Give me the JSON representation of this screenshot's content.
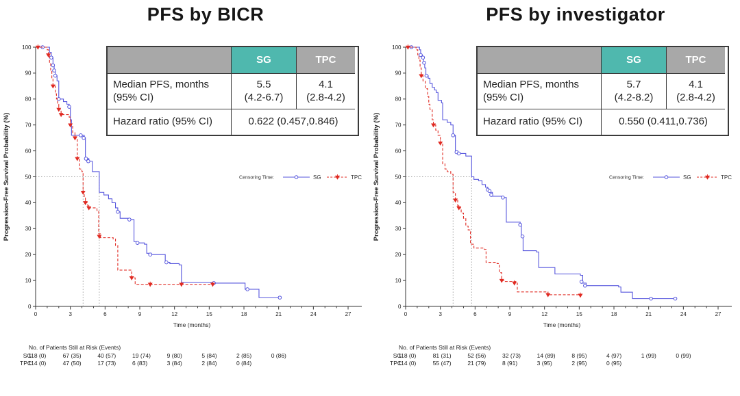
{
  "colors": {
    "sg": "#5555dd",
    "tpc": "#e02a22",
    "teal_header": "#4fb8ae",
    "gray_header": "#a8a8a8",
    "table_border": "#3a3a3a",
    "axis": "#333333",
    "ref_line": "#999999"
  },
  "panels": [
    {
      "title": "PFS by BICR",
      "stats_table": {
        "headers": [
          "",
          "SG",
          "TPC"
        ],
        "median_row": {
          "label": "Median PFS, months\n(95% CI)",
          "sg": "5.5\n(4.2-6.7)",
          "tpc": "4.1\n(2.8-4.2)"
        },
        "hazard_row": {
          "label": "Hazard ratio (95% CI)",
          "value": "0.622 (0.457,0.846)"
        }
      },
      "at_risk": {
        "title": "No. of Patients Still at Risk (Events)",
        "interval_months": 3,
        "rows": [
          {
            "label": "SG",
            "values": [
              "118 (0)",
              "67 (35)",
              "40 (57)",
              "19 (74)",
              "9 (80)",
              "5 (84)",
              "2 (85)",
              "0 (86)"
            ]
          },
          {
            "label": "TPC",
            "values": [
              "114 (0)",
              "47 (50)",
              "17 (73)",
              "6 (83)",
              "3 (84)",
              "2 (84)",
              "0 (84)"
            ]
          }
        ]
      }
    },
    {
      "title": "PFS by investigator",
      "stats_table": {
        "headers": [
          "",
          "SG",
          "TPC"
        ],
        "median_row": {
          "label": "Median PFS, months\n(95% CI)",
          "sg": "5.7\n(4.2-8.2)",
          "tpc": "4.1\n(2.8-4.2)"
        },
        "hazard_row": {
          "label": "Hazard ratio (95% CI)",
          "value": "0.550 (0.411,0.736)"
        }
      },
      "at_risk": {
        "title": "No. of Patients Still at Risk (Events)",
        "interval_months": 3,
        "rows": [
          {
            "label": "SG",
            "values": [
              "118 (0)",
              "81 (31)",
              "52 (56)",
              "32 (73)",
              "14 (89)",
              "8 (95)",
              "4 (97)",
              "1 (99)",
              "0 (99)"
            ]
          },
          {
            "label": "TPC",
            "values": [
              "114 (0)",
              "55 (47)",
              "21 (79)",
              "8 (91)",
              "3 (95)",
              "2 (95)",
              "0 (95)"
            ]
          }
        ]
      }
    }
  ],
  "chart_data": [
    {
      "type": "line",
      "subtype": "kaplan-meier-step",
      "title": "PFS by BICR",
      "xlabel": "Time (months)",
      "ylabel": "Progression-Free Survival Probability (%)",
      "xlim": [
        0,
        27
      ],
      "xticks": [
        0,
        3,
        6,
        9,
        12,
        15,
        18,
        21,
        24,
        27
      ],
      "minor_x_step": 1,
      "ylim": [
        0,
        100
      ],
      "yticks": [
        0,
        10,
        20,
        30,
        40,
        50,
        60,
        70,
        80,
        90,
        100
      ],
      "grid": false,
      "legend": {
        "prefix": "Censoring Time:",
        "entries": [
          "SG",
          "TPC"
        ],
        "position": "right-middle"
      },
      "reference_lines": {
        "y": 50,
        "x_medians": [
          4.1,
          5.5
        ]
      },
      "series": [
        {
          "name": "SG",
          "color_key": "sg",
          "line": "solid",
          "marker": "open-circle",
          "steps": [
            [
              0,
              100
            ],
            [
              1.2,
              98
            ],
            [
              1.35,
              96
            ],
            [
              1.5,
              93
            ],
            [
              1.6,
              91
            ],
            [
              1.7,
              89
            ],
            [
              1.85,
              87
            ],
            [
              2.0,
              80
            ],
            [
              2.4,
              79
            ],
            [
              2.7,
              78
            ],
            [
              2.9,
              77
            ],
            [
              3.0,
              72
            ],
            [
              3.1,
              66
            ],
            [
              4.2,
              65
            ],
            [
              4.3,
              57
            ],
            [
              4.6,
              56
            ],
            [
              4.9,
              52
            ],
            [
              5.5,
              44
            ],
            [
              5.9,
              43
            ],
            [
              6.3,
              41.5
            ],
            [
              6.6,
              40
            ],
            [
              6.9,
              38
            ],
            [
              7.1,
              36.5
            ],
            [
              7.3,
              34
            ],
            [
              8.1,
              33.5
            ],
            [
              8.5,
              25
            ],
            [
              8.8,
              24.5
            ],
            [
              9.4,
              24
            ],
            [
              9.6,
              20.5
            ],
            [
              10.0,
              20
            ],
            [
              11.2,
              17
            ],
            [
              11.6,
              16.5
            ],
            [
              12.4,
              16
            ],
            [
              12.6,
              9.2
            ],
            [
              15.5,
              9
            ],
            [
              18.1,
              6.6
            ],
            [
              19.3,
              3.4
            ],
            [
              21.1,
              3.4
            ]
          ],
          "censor_marks": [
            [
              0.6,
              100
            ],
            [
              1.35,
              96
            ],
            [
              1.5,
              93
            ],
            [
              1.6,
              91
            ],
            [
              1.7,
              89
            ],
            [
              2.0,
              80
            ],
            [
              2.9,
              77
            ],
            [
              3.9,
              66
            ],
            [
              4.15,
              65
            ],
            [
              4.35,
              57
            ],
            [
              4.55,
              56
            ],
            [
              7.1,
              36.5
            ],
            [
              8.1,
              33.5
            ],
            [
              8.8,
              24.5
            ],
            [
              9.9,
              20
            ],
            [
              11.3,
              17
            ],
            [
              15.4,
              9
            ],
            [
              18.3,
              6.6
            ],
            [
              21.1,
              3.4
            ]
          ]
        },
        {
          "name": "TPC",
          "color_key": "tpc",
          "line": "dashed",
          "marker": "filled-triangle",
          "steps": [
            [
              0,
              100
            ],
            [
              1.0,
              99
            ],
            [
              1.1,
              97
            ],
            [
              1.2,
              94
            ],
            [
              1.3,
              91
            ],
            [
              1.4,
              88
            ],
            [
              1.5,
              85
            ],
            [
              1.7,
              82
            ],
            [
              1.8,
              80
            ],
            [
              1.9,
              78
            ],
            [
              2.0,
              76
            ],
            [
              2.2,
              74
            ],
            [
              2.9,
              73
            ],
            [
              3.0,
              70
            ],
            [
              3.2,
              67
            ],
            [
              3.4,
              65
            ],
            [
              3.6,
              57
            ],
            [
              3.8,
              53
            ],
            [
              4.0,
              52
            ],
            [
              4.1,
              44
            ],
            [
              4.2,
              42
            ],
            [
              4.3,
              40
            ],
            [
              4.5,
              38
            ],
            [
              5.3,
              37
            ],
            [
              5.45,
              28
            ],
            [
              5.6,
              26.5
            ],
            [
              6.7,
              26
            ],
            [
              6.9,
              23.5
            ],
            [
              7.1,
              14
            ],
            [
              8.3,
              11
            ],
            [
              8.6,
              8.5
            ],
            [
              15.4,
              8.5
            ]
          ],
          "censor_marks": [
            [
              0.2,
              100
            ],
            [
              1.1,
              97
            ],
            [
              1.5,
              85
            ],
            [
              2.0,
              76
            ],
            [
              2.2,
              74
            ],
            [
              3.0,
              70
            ],
            [
              3.4,
              65
            ],
            [
              3.6,
              57
            ],
            [
              4.1,
              44
            ],
            [
              4.3,
              40
            ],
            [
              4.6,
              38
            ],
            [
              5.5,
              27
            ],
            [
              8.3,
              11
            ],
            [
              9.9,
              8.5
            ],
            [
              12.6,
              8.5
            ],
            [
              15.3,
              8.5
            ]
          ]
        }
      ]
    },
    {
      "type": "line",
      "subtype": "kaplan-meier-step",
      "title": "PFS by investigator",
      "xlabel": "Time (months)",
      "ylabel": "Progression-Free Survival Probability (%)",
      "xlim": [
        0,
        27
      ],
      "xticks": [
        0,
        3,
        6,
        9,
        12,
        15,
        18,
        21,
        24,
        27
      ],
      "minor_x_step": 1,
      "ylim": [
        0,
        100
      ],
      "yticks": [
        0,
        10,
        20,
        30,
        40,
        50,
        60,
        70,
        80,
        90,
        100
      ],
      "grid": false,
      "legend": {
        "prefix": "Censoring Time:",
        "entries": [
          "SG",
          "TPC"
        ],
        "position": "right-middle"
      },
      "reference_lines": {
        "y": 50,
        "x_medians": [
          4.1,
          5.7
        ]
      },
      "series": [
        {
          "name": "SG",
          "color_key": "sg",
          "line": "solid",
          "marker": "open-circle",
          "steps": [
            [
              0,
              100
            ],
            [
              1.2,
              99
            ],
            [
              1.3,
              97
            ],
            [
              1.45,
              96
            ],
            [
              1.55,
              94
            ],
            [
              1.65,
              92
            ],
            [
              1.75,
              89
            ],
            [
              1.95,
              88
            ],
            [
              2.1,
              86
            ],
            [
              2.3,
              84.5
            ],
            [
              2.5,
              83.5
            ],
            [
              2.65,
              82.5
            ],
            [
              2.8,
              79.5
            ],
            [
              3.1,
              78.5
            ],
            [
              3.2,
              72
            ],
            [
              3.6,
              71
            ],
            [
              3.9,
              70
            ],
            [
              4.1,
              66
            ],
            [
              4.3,
              60
            ],
            [
              4.5,
              59
            ],
            [
              5.2,
              58
            ],
            [
              5.7,
              50
            ],
            [
              5.9,
              49
            ],
            [
              6.3,
              48.5
            ],
            [
              6.6,
              47
            ],
            [
              6.9,
              46
            ],
            [
              7.1,
              45
            ],
            [
              7.3,
              44
            ],
            [
              7.5,
              42.5
            ],
            [
              8.4,
              42
            ],
            [
              8.7,
              32.5
            ],
            [
              9.9,
              31.5
            ],
            [
              10.0,
              27
            ],
            [
              10.15,
              21.5
            ],
            [
              11.3,
              21
            ],
            [
              11.5,
              15
            ],
            [
              12.9,
              12.5
            ],
            [
              15.1,
              12
            ],
            [
              15.3,
              9
            ],
            [
              15.6,
              8
            ],
            [
              18.4,
              7.5
            ],
            [
              18.6,
              5.5
            ],
            [
              19.6,
              3
            ],
            [
              23.4,
              3
            ]
          ],
          "censor_marks": [
            [
              0.5,
              100
            ],
            [
              1.3,
              97
            ],
            [
              1.5,
              96
            ],
            [
              1.6,
              94
            ],
            [
              1.8,
              89
            ],
            [
              4.1,
              66
            ],
            [
              4.4,
              59.5
            ],
            [
              4.6,
              59
            ],
            [
              7.1,
              45
            ],
            [
              7.25,
              44.5
            ],
            [
              7.4,
              43
            ],
            [
              8.4,
              42
            ],
            [
              9.9,
              31.5
            ],
            [
              10.1,
              27
            ],
            [
              15.2,
              9.5
            ],
            [
              15.5,
              8
            ],
            [
              21.2,
              3
            ],
            [
              23.3,
              3
            ]
          ]
        },
        {
          "name": "TPC",
          "color_key": "tpc",
          "line": "dashed",
          "marker": "filled-triangle",
          "steps": [
            [
              0,
              100
            ],
            [
              0.9,
              99
            ],
            [
              1.05,
              97
            ],
            [
              1.15,
              95
            ],
            [
              1.25,
              92
            ],
            [
              1.35,
              89
            ],
            [
              1.5,
              87
            ],
            [
              1.7,
              84
            ],
            [
              1.9,
              81
            ],
            [
              2.0,
              78
            ],
            [
              2.1,
              76
            ],
            [
              2.3,
              72
            ],
            [
              2.4,
              70
            ],
            [
              2.6,
              68
            ],
            [
              2.8,
              66
            ],
            [
              3.0,
              63
            ],
            [
              3.2,
              55
            ],
            [
              3.4,
              53
            ],
            [
              3.6,
              52
            ],
            [
              3.9,
              51
            ],
            [
              4.1,
              44
            ],
            [
              4.3,
              41
            ],
            [
              4.5,
              38
            ],
            [
              4.8,
              36
            ],
            [
              5.0,
              34
            ],
            [
              5.2,
              31
            ],
            [
              5.4,
              29.5
            ],
            [
              5.6,
              24
            ],
            [
              5.9,
              22.5
            ],
            [
              6.8,
              22
            ],
            [
              6.95,
              17
            ],
            [
              7.9,
              16.5
            ],
            [
              8.1,
              13
            ],
            [
              8.3,
              10
            ],
            [
              8.5,
              9.6
            ],
            [
              9.5,
              9
            ],
            [
              9.65,
              5.6
            ],
            [
              12.3,
              4.5
            ],
            [
              15.2,
              4.3
            ]
          ],
          "censor_marks": [
            [
              0.2,
              100
            ],
            [
              1.35,
              89
            ],
            [
              2.4,
              70
            ],
            [
              3.0,
              63
            ],
            [
              4.3,
              41
            ],
            [
              4.6,
              38
            ],
            [
              8.3,
              10
            ],
            [
              9.4,
              9
            ],
            [
              12.3,
              4.5
            ],
            [
              15.1,
              4.3
            ]
          ]
        }
      ]
    }
  ]
}
